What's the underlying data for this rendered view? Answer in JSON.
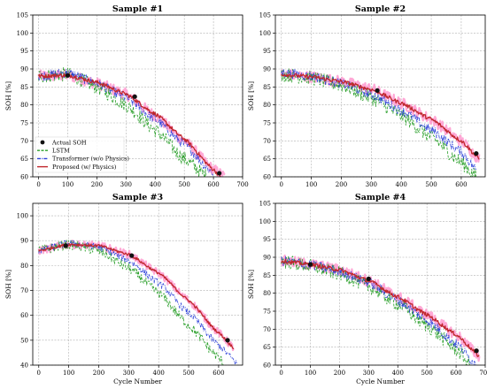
{
  "chart_data": [
    {
      "type": "line",
      "title": "Sample #1",
      "xlabel": "",
      "ylabel": "SOH [%]",
      "xlim": [
        -20,
        700
      ],
      "ylim": [
        60,
        105
      ],
      "xticks": [
        "0",
        "100",
        "200",
        "300",
        "400",
        "500",
        "600",
        "700"
      ],
      "yticks": [
        "60",
        "65",
        "70",
        "75",
        "80",
        "85",
        "90",
        "95",
        "100",
        "105"
      ],
      "grid": true,
      "legend": {
        "position": "lower-left",
        "entries": [
          "Actual SOH",
          "LSTM",
          "Transformer (w/o Physics)",
          "Proposed (w/ Physics)"
        ]
      },
      "actual_points": [
        [
          100,
          88.2
        ],
        [
          330,
          82.3
        ],
        [
          620,
          61
        ]
      ],
      "series": [
        {
          "name": "Actual SOH",
          "color": "#ff9ed2",
          "x": [
            0,
            100,
            200,
            300,
            400,
            500,
            600,
            640
          ],
          "y": [
            88,
            88.2,
            86,
            83,
            77,
            70,
            62,
            60
          ]
        },
        {
          "name": "LSTM",
          "color": "#2ca02c",
          "x": [
            0,
            100,
            200,
            300,
            400,
            500,
            580
          ],
          "y": [
            88,
            88.5,
            85,
            80,
            73,
            65,
            60
          ]
        },
        {
          "name": "Transformer (w/o Physics)",
          "color": "#2a3fd9",
          "x": [
            0,
            100,
            200,
            300,
            400,
            500,
            600
          ],
          "y": [
            88,
            89,
            86,
            82,
            76,
            69,
            61
          ]
        },
        {
          "name": "Proposed (w/ Physics)",
          "color": "#c0272d",
          "x": [
            0,
            100,
            200,
            300,
            400,
            500,
            600,
            625
          ],
          "y": [
            88,
            88.3,
            86.3,
            83,
            77.5,
            70.5,
            62,
            60
          ]
        }
      ]
    },
    {
      "type": "line",
      "title": "Sample #2",
      "xlabel": "",
      "ylabel": "SOH [%]",
      "xlim": [
        -20,
        680
      ],
      "ylim": [
        60,
        105
      ],
      "xticks": [
        "0",
        "100",
        "200",
        "300",
        "400",
        "500",
        "600"
      ],
      "yticks": [
        "60",
        "65",
        "70",
        "75",
        "80",
        "85",
        "90",
        "95",
        "100",
        "105"
      ],
      "grid": true,
      "actual_points": [
        [
          320,
          84
        ],
        [
          650,
          66.5
        ]
      ],
      "series": [
        {
          "name": "Actual SOH",
          "color": "#ff9ed2",
          "x": [
            0,
            100,
            200,
            300,
            400,
            500,
            600,
            660
          ],
          "y": [
            88.5,
            87.8,
            86.5,
            84.5,
            80.5,
            76,
            70,
            65
          ]
        },
        {
          "name": "LSTM",
          "color": "#2ca02c",
          "x": [
            0,
            100,
            200,
            300,
            400,
            500,
            600,
            650
          ],
          "y": [
            88.5,
            87.5,
            85.5,
            82,
            77,
            71,
            64,
            60
          ]
        },
        {
          "name": "Transformer (w/o Physics)",
          "color": "#2a3fd9",
          "x": [
            0,
            100,
            200,
            300,
            400,
            500,
            600,
            650
          ],
          "y": [
            89,
            88,
            86,
            83,
            78.5,
            73,
            67,
            62
          ]
        },
        {
          "name": "Proposed (w/ Physics)",
          "color": "#c0272d",
          "x": [
            0,
            100,
            200,
            300,
            400,
            500,
            600,
            660
          ],
          "y": [
            88.5,
            87.8,
            86.5,
            84.3,
            80.5,
            76,
            70,
            65
          ]
        }
      ]
    },
    {
      "type": "line",
      "title": "Sample #3",
      "xlabel": "Cycle Number",
      "ylabel": "SOH [%]",
      "xlim": [
        -20,
        680
      ],
      "ylim": [
        40,
        105
      ],
      "xticks": [
        "0",
        "100",
        "200",
        "300",
        "400",
        "500",
        "600"
      ],
      "yticks": [
        "40",
        "50",
        "60",
        "70",
        "80",
        "90",
        "100"
      ],
      "grid": true,
      "actual_points": [
        [
          90,
          88
        ],
        [
          310,
          84
        ],
        [
          630,
          50
        ]
      ],
      "series": [
        {
          "name": "Actual SOH",
          "color": "#ff9ed2",
          "x": [
            0,
            100,
            200,
            300,
            400,
            500,
            600,
            650
          ],
          "y": [
            86,
            88.5,
            88,
            84.5,
            77,
            66,
            53,
            47
          ]
        },
        {
          "name": "LSTM",
          "color": "#2ca02c",
          "x": [
            0,
            100,
            200,
            300,
            400,
            500,
            600,
            620
          ],
          "y": [
            86,
            88.5,
            86,
            79,
            69,
            56,
            43,
            40
          ]
        },
        {
          "name": "Transformer (w/o Physics)",
          "color": "#2a3fd9",
          "x": [
            0,
            100,
            200,
            300,
            400,
            500,
            600,
            660
          ],
          "y": [
            86,
            89,
            87.5,
            82,
            73,
            61,
            48,
            41
          ]
        },
        {
          "name": "Proposed (w/ Physics)",
          "color": "#c0272d",
          "x": [
            0,
            100,
            200,
            300,
            400,
            500,
            600,
            650
          ],
          "y": [
            86,
            88.5,
            88,
            84.5,
            77,
            66,
            53,
            47
          ]
        }
      ]
    },
    {
      "type": "line",
      "title": "Sample #4",
      "xlabel": "Cycle Number",
      "ylabel": "SOH [%]",
      "xlim": [
        -20,
        700
      ],
      "ylim": [
        60,
        105
      ],
      "xticks": [
        "0",
        "100",
        "200",
        "300",
        "400",
        "500",
        "600",
        "700"
      ],
      "yticks": [
        "60",
        "65",
        "70",
        "75",
        "80",
        "85",
        "90",
        "95",
        "100",
        "105"
      ],
      "grid": true,
      "actual_points": [
        [
          100,
          88
        ],
        [
          300,
          84
        ],
        [
          670,
          64
        ]
      ],
      "series": [
        {
          "name": "Actual SOH",
          "color": "#ff9ed2",
          "x": [
            0,
            100,
            200,
            300,
            400,
            500,
            600,
            680
          ],
          "y": [
            89,
            88,
            86.5,
            83.5,
            79,
            74,
            68.5,
            62.5
          ]
        },
        {
          "name": "LSTM",
          "color": "#2ca02c",
          "x": [
            0,
            100,
            200,
            300,
            400,
            500,
            600,
            650
          ],
          "y": [
            89,
            87.5,
            85.5,
            82,
            77,
            71,
            64.5,
            60
          ]
        },
        {
          "name": "Transformer (w/o Physics)",
          "color": "#2a3fd9",
          "x": [
            0,
            100,
            200,
            300,
            400,
            500,
            600,
            670
          ],
          "y": [
            89,
            88,
            86,
            83,
            78,
            72.5,
            66,
            60
          ]
        },
        {
          "name": "Proposed (w/ Physics)",
          "color": "#c0272d",
          "x": [
            0,
            100,
            200,
            300,
            400,
            500,
            600,
            680
          ],
          "y": [
            89,
            88,
            86.5,
            83.5,
            79,
            74,
            68.5,
            62.5
          ]
        }
      ]
    }
  ]
}
